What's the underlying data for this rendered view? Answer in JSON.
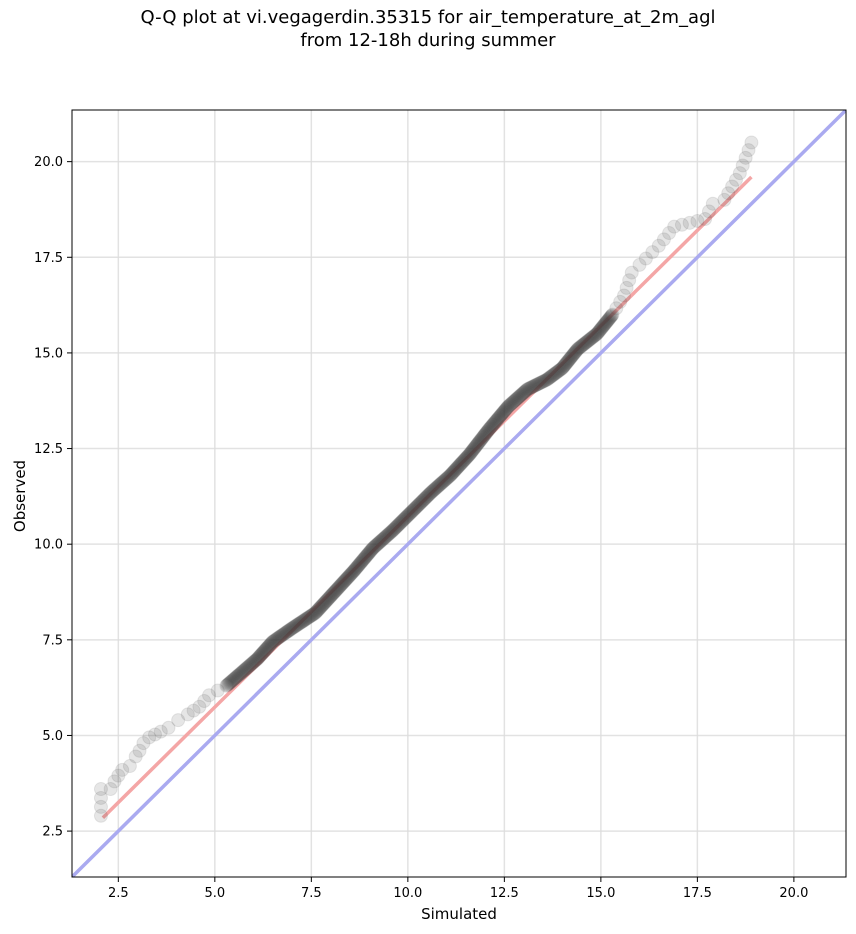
{
  "chart_data": {
    "type": "scatter",
    "title": "Q-Q plot at vi.vegagerdin.35315 for air_temperature_at_2m_agl",
    "subtitle": "from 12-18h during summer",
    "xlabel": "Simulated",
    "ylabel": "Observed",
    "xlim": [
      1.3,
      21.35
    ],
    "ylim": [
      1.3,
      21.35
    ],
    "xticks": [
      "2.5",
      "5.0",
      "7.5",
      "10.0",
      "12.5",
      "15.0",
      "17.5",
      "20.0"
    ],
    "yticks": [
      "2.5",
      "5.0",
      "7.5",
      "10.0",
      "12.5",
      "15.0",
      "17.5",
      "20.0"
    ],
    "grid": true,
    "reference_line": {
      "from": [
        1.3,
        1.3
      ],
      "to": [
        21.35,
        21.35
      ],
      "color": "#aaaaf0"
    },
    "fit_line": {
      "from": [
        2.1,
        2.85
      ],
      "to": [
        18.9,
        19.6
      ],
      "color": "#f4a6a6"
    },
    "points_color": "#333333",
    "key_points": [
      [
        2.05,
        2.9
      ],
      [
        2.05,
        3.6
      ],
      [
        2.3,
        3.6
      ],
      [
        2.4,
        3.8
      ],
      [
        2.6,
        4.1
      ],
      [
        2.8,
        4.2
      ],
      [
        2.95,
        4.45
      ],
      [
        3.05,
        4.6
      ],
      [
        3.15,
        4.8
      ],
      [
        3.3,
        4.95
      ],
      [
        3.6,
        5.1
      ],
      [
        3.8,
        5.2
      ],
      [
        4.05,
        5.4
      ],
      [
        4.3,
        5.55
      ],
      [
        4.6,
        5.75
      ],
      [
        4.85,
        6.05
      ],
      [
        5.3,
        6.3
      ],
      [
        5.7,
        6.65
      ],
      [
        6.1,
        7.0
      ],
      [
        6.5,
        7.45
      ],
      [
        7.0,
        7.8
      ],
      [
        7.6,
        8.2
      ],
      [
        8.1,
        8.75
      ],
      [
        8.6,
        9.3
      ],
      [
        9.1,
        9.9
      ],
      [
        9.6,
        10.35
      ],
      [
        10.1,
        10.85
      ],
      [
        10.6,
        11.35
      ],
      [
        11.1,
        11.8
      ],
      [
        11.6,
        12.35
      ],
      [
        12.1,
        13.0
      ],
      [
        12.6,
        13.6
      ],
      [
        13.1,
        14.05
      ],
      [
        13.6,
        14.3
      ],
      [
        14.0,
        14.6
      ],
      [
        14.4,
        15.1
      ],
      [
        14.9,
        15.5
      ],
      [
        15.3,
        16.0
      ],
      [
        15.6,
        16.5
      ],
      [
        15.8,
        17.1
      ],
      [
        16.0,
        17.3
      ],
      [
        16.5,
        17.8
      ],
      [
        16.9,
        18.3
      ],
      [
        17.7,
        18.5
      ],
      [
        17.9,
        18.9
      ],
      [
        18.2,
        19.0
      ],
      [
        18.6,
        19.7
      ],
      [
        18.9,
        20.5
      ]
    ]
  }
}
